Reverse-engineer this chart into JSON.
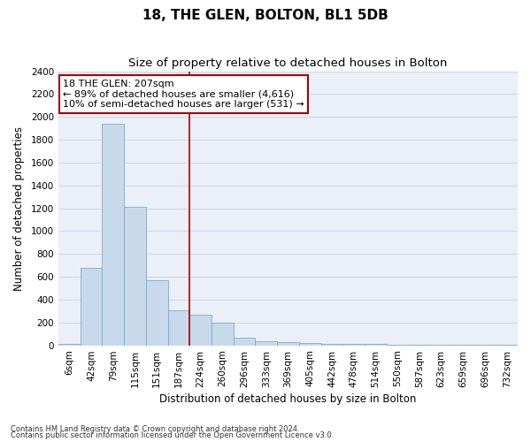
{
  "title": "18, THE GLEN, BOLTON, BL1 5DB",
  "subtitle": "Size of property relative to detached houses in Bolton",
  "xlabel": "Distribution of detached houses by size in Bolton",
  "ylabel": "Number of detached properties",
  "footnote1": "Contains HM Land Registry data © Crown copyright and database right 2024.",
  "footnote2": "Contains public sector information licensed under the Open Government Licence v3.0.",
  "annotation_title": "18 THE GLEN: 207sqm",
  "annotation_line1": "← 89% of detached houses are smaller (4,616)",
  "annotation_line2": "10% of semi-detached houses are larger (531) →",
  "bar_color": "#c8d9ec",
  "bar_edge_color": "#7aabce",
  "vline_color": "#aa0000",
  "vline_position": 5.5,
  "annotation_box_color": "#aa0000",
  "annotation_bg": "#ffffff",
  "categories": [
    "6sqm",
    "42sqm",
    "79sqm",
    "115sqm",
    "151sqm",
    "187sqm",
    "224sqm",
    "260sqm",
    "296sqm",
    "333sqm",
    "369sqm",
    "405sqm",
    "442sqm",
    "478sqm",
    "514sqm",
    "550sqm",
    "587sqm",
    "623sqm",
    "659sqm",
    "696sqm",
    "732sqm"
  ],
  "values": [
    10,
    680,
    1940,
    1210,
    570,
    305,
    270,
    195,
    65,
    35,
    25,
    20,
    15,
    10,
    10,
    5,
    5,
    4,
    4,
    2,
    1
  ],
  "ylim": [
    0,
    2400
  ],
  "yticks": [
    0,
    200,
    400,
    600,
    800,
    1000,
    1200,
    1400,
    1600,
    1800,
    2000,
    2200,
    2400
  ],
  "grid_color": "#cdd6e8",
  "background_color": "#eaeff8",
  "title_fontsize": 11,
  "subtitle_fontsize": 9.5,
  "axis_label_fontsize": 8.5,
  "tick_fontsize": 7.5,
  "annotation_fontsize": 8
}
